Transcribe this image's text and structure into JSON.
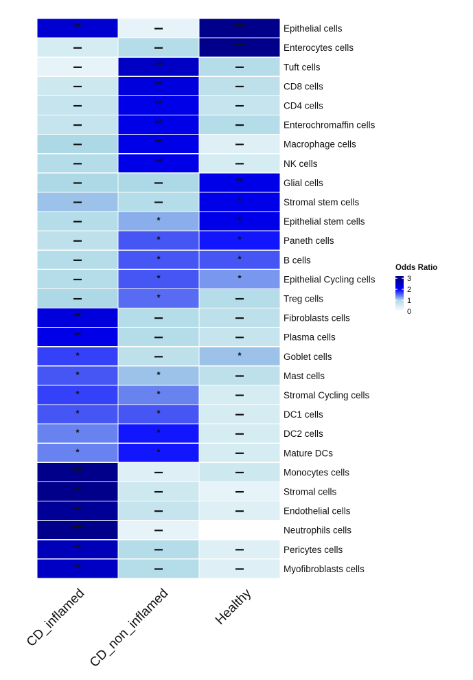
{
  "chart_data": {
    "type": "heatmap",
    "columns": [
      "CD_inflamed",
      "CD_non_inflamed",
      "Healthy"
    ],
    "rows": [
      "Epithelial cells",
      "Enterocytes cells",
      "Tuft cells",
      "CD8 cells",
      "CD4 cells",
      "Enterochromaffin cells",
      "Macrophage cells",
      "NK cells",
      "Glial cells",
      "Stromal stem cells",
      "Epithelial stem cells",
      "Paneth cells",
      "B cells",
      "Epithelial Cycling cells",
      "Treg cells",
      "Fibroblasts cells",
      "Plasma cells",
      "Goblet cells",
      "Mast cells",
      "Stromal Cycling cells",
      "DC1 cells",
      "DC2 cells",
      "Mature DCs",
      "Monocytes cells",
      "Stromal cells",
      "Endothelial cells",
      "Neutrophils cells",
      "Pericytes cells",
      "Myofibroblasts cells"
    ],
    "values": [
      [
        2.4,
        0.3,
        3.1
      ],
      [
        0.5,
        0.9,
        3.1
      ],
      [
        0.3,
        2.5,
        0.9
      ],
      [
        0.6,
        2.3,
        0.8
      ],
      [
        0.7,
        2.2,
        0.7
      ],
      [
        0.7,
        2.2,
        0.9
      ],
      [
        1.0,
        2.2,
        0.4
      ],
      [
        0.9,
        2.2,
        0.5
      ],
      [
        1.0,
        1.0,
        2.2
      ],
      [
        1.1,
        0.9,
        2.2
      ],
      [
        0.9,
        1.2,
        2.2
      ],
      [
        0.8,
        1.6,
        1.9
      ],
      [
        0.9,
        1.6,
        1.6
      ],
      [
        0.9,
        1.6,
        1.3
      ],
      [
        1.0,
        1.5,
        0.9
      ],
      [
        2.3,
        0.9,
        0.8
      ],
      [
        2.2,
        0.9,
        0.7
      ],
      [
        1.7,
        0.8,
        1.1
      ],
      [
        1.6,
        1.1,
        0.8
      ],
      [
        1.7,
        1.4,
        0.5
      ],
      [
        1.6,
        1.6,
        0.5
      ],
      [
        1.4,
        1.9,
        0.5
      ],
      [
        1.4,
        1.9,
        0.5
      ],
      [
        3.1,
        0.4,
        0.6
      ],
      [
        3.0,
        0.6,
        0.3
      ],
      [
        2.9,
        0.7,
        0.4
      ],
      [
        3.1,
        0.3,
        null
      ],
      [
        2.6,
        0.9,
        0.4
      ],
      [
        2.5,
        0.9,
        0.4
      ]
    ],
    "significance": [
      [
        "**",
        "–",
        "***"
      ],
      [
        "–",
        "–",
        "***"
      ],
      [
        "–",
        "**",
        "–"
      ],
      [
        "–",
        "**",
        "–"
      ],
      [
        "–",
        "**",
        "–"
      ],
      [
        "–",
        "**",
        "–"
      ],
      [
        "–",
        "**",
        "–"
      ],
      [
        "–",
        "**",
        "–"
      ],
      [
        "–",
        "–",
        "**"
      ],
      [
        "–",
        "–",
        "*"
      ],
      [
        "–",
        "*",
        "*"
      ],
      [
        "–",
        "*",
        "*"
      ],
      [
        "–",
        "*",
        "*"
      ],
      [
        "–",
        "*",
        "*"
      ],
      [
        "–",
        "*",
        "–"
      ],
      [
        "**",
        "–",
        "–"
      ],
      [
        "**",
        "–",
        "–"
      ],
      [
        "*",
        "–",
        "*"
      ],
      [
        "*",
        "*",
        "–"
      ],
      [
        "*",
        "*",
        "–"
      ],
      [
        "*",
        "*",
        "–"
      ],
      [
        "*",
        "*",
        "–"
      ],
      [
        "*",
        "*",
        "–"
      ],
      [
        "***",
        "–",
        "–"
      ],
      [
        "**",
        "–",
        "–"
      ],
      [
        "**",
        "–",
        "–"
      ],
      [
        "***",
        "–",
        ""
      ],
      [
        "**",
        "–",
        "–"
      ],
      [
        "**",
        "–",
        "–"
      ]
    ],
    "legend": {
      "title": "Odds Ratio",
      "ticks": [
        0,
        1,
        2,
        3
      ],
      "range": [
        0,
        3.2
      ],
      "placement": "right"
    },
    "colorscale": [
      "#ffffff",
      "#add8e6",
      "#0000ff",
      "#00008b"
    ],
    "missing_color": "#ffffff"
  }
}
